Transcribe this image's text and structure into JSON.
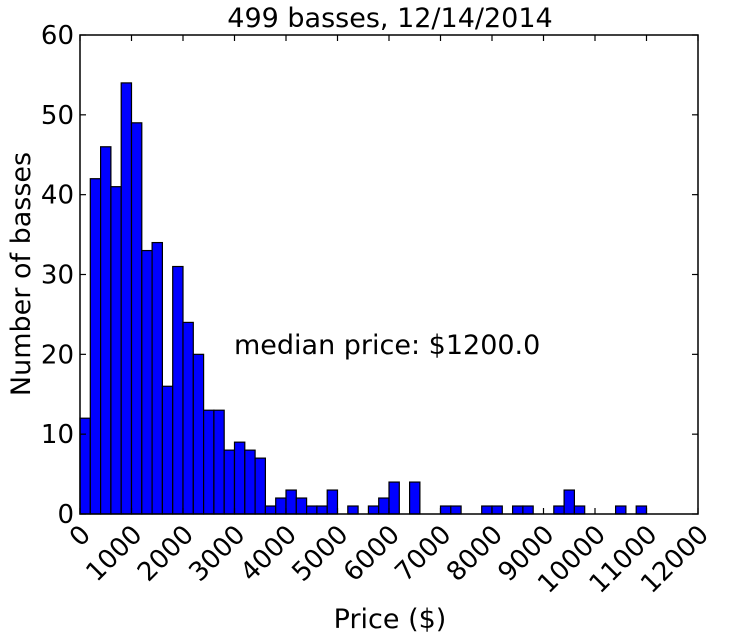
{
  "chart_data": {
    "type": "bar",
    "title": "499 basses, 12/14/2014",
    "xlabel": "Price ($)",
    "ylabel": "Number of basses",
    "xlim": [
      0,
      12000
    ],
    "ylim": [
      0,
      60
    ],
    "x_ticks": [
      0,
      1000,
      2000,
      3000,
      4000,
      5000,
      6000,
      7000,
      8000,
      9000,
      10000,
      11000,
      12000
    ],
    "y_ticks": [
      0,
      10,
      20,
      30,
      40,
      50,
      60
    ],
    "bin_width": 200,
    "bin_starts": [
      0,
      200,
      400,
      600,
      800,
      1000,
      1200,
      1400,
      1600,
      1800,
      2000,
      2200,
      2400,
      2600,
      2800,
      3000,
      3200,
      3400,
      3600,
      3800,
      4000,
      4200,
      4400,
      4600,
      4800,
      5000,
      5200,
      5400,
      5600,
      5800,
      6000,
      6200,
      6400,
      6600,
      6800,
      7000,
      7200,
      7400,
      7600,
      7800,
      8000,
      8200,
      8400,
      8600,
      8800,
      9000,
      9200,
      9400,
      9600,
      9800,
      10000,
      10200,
      10400,
      10600,
      10800,
      11000,
      11200,
      11400,
      11600,
      11800
    ],
    "values": [
      12,
      42,
      46,
      41,
      54,
      49,
      33,
      34,
      16,
      31,
      24,
      20,
      13,
      13,
      8,
      9,
      8,
      7,
      1,
      2,
      3,
      2,
      1,
      1,
      3,
      0,
      1,
      0,
      1,
      2,
      4,
      0,
      4,
      0,
      0,
      1,
      1,
      0,
      0,
      1,
      1,
      0,
      1,
      1,
      0,
      0,
      1,
      3,
      1,
      0,
      0,
      0,
      1,
      0,
      1,
      0,
      0,
      0,
      0,
      0
    ],
    "annotation": "median price: $1200.0",
    "grid": false
  }
}
